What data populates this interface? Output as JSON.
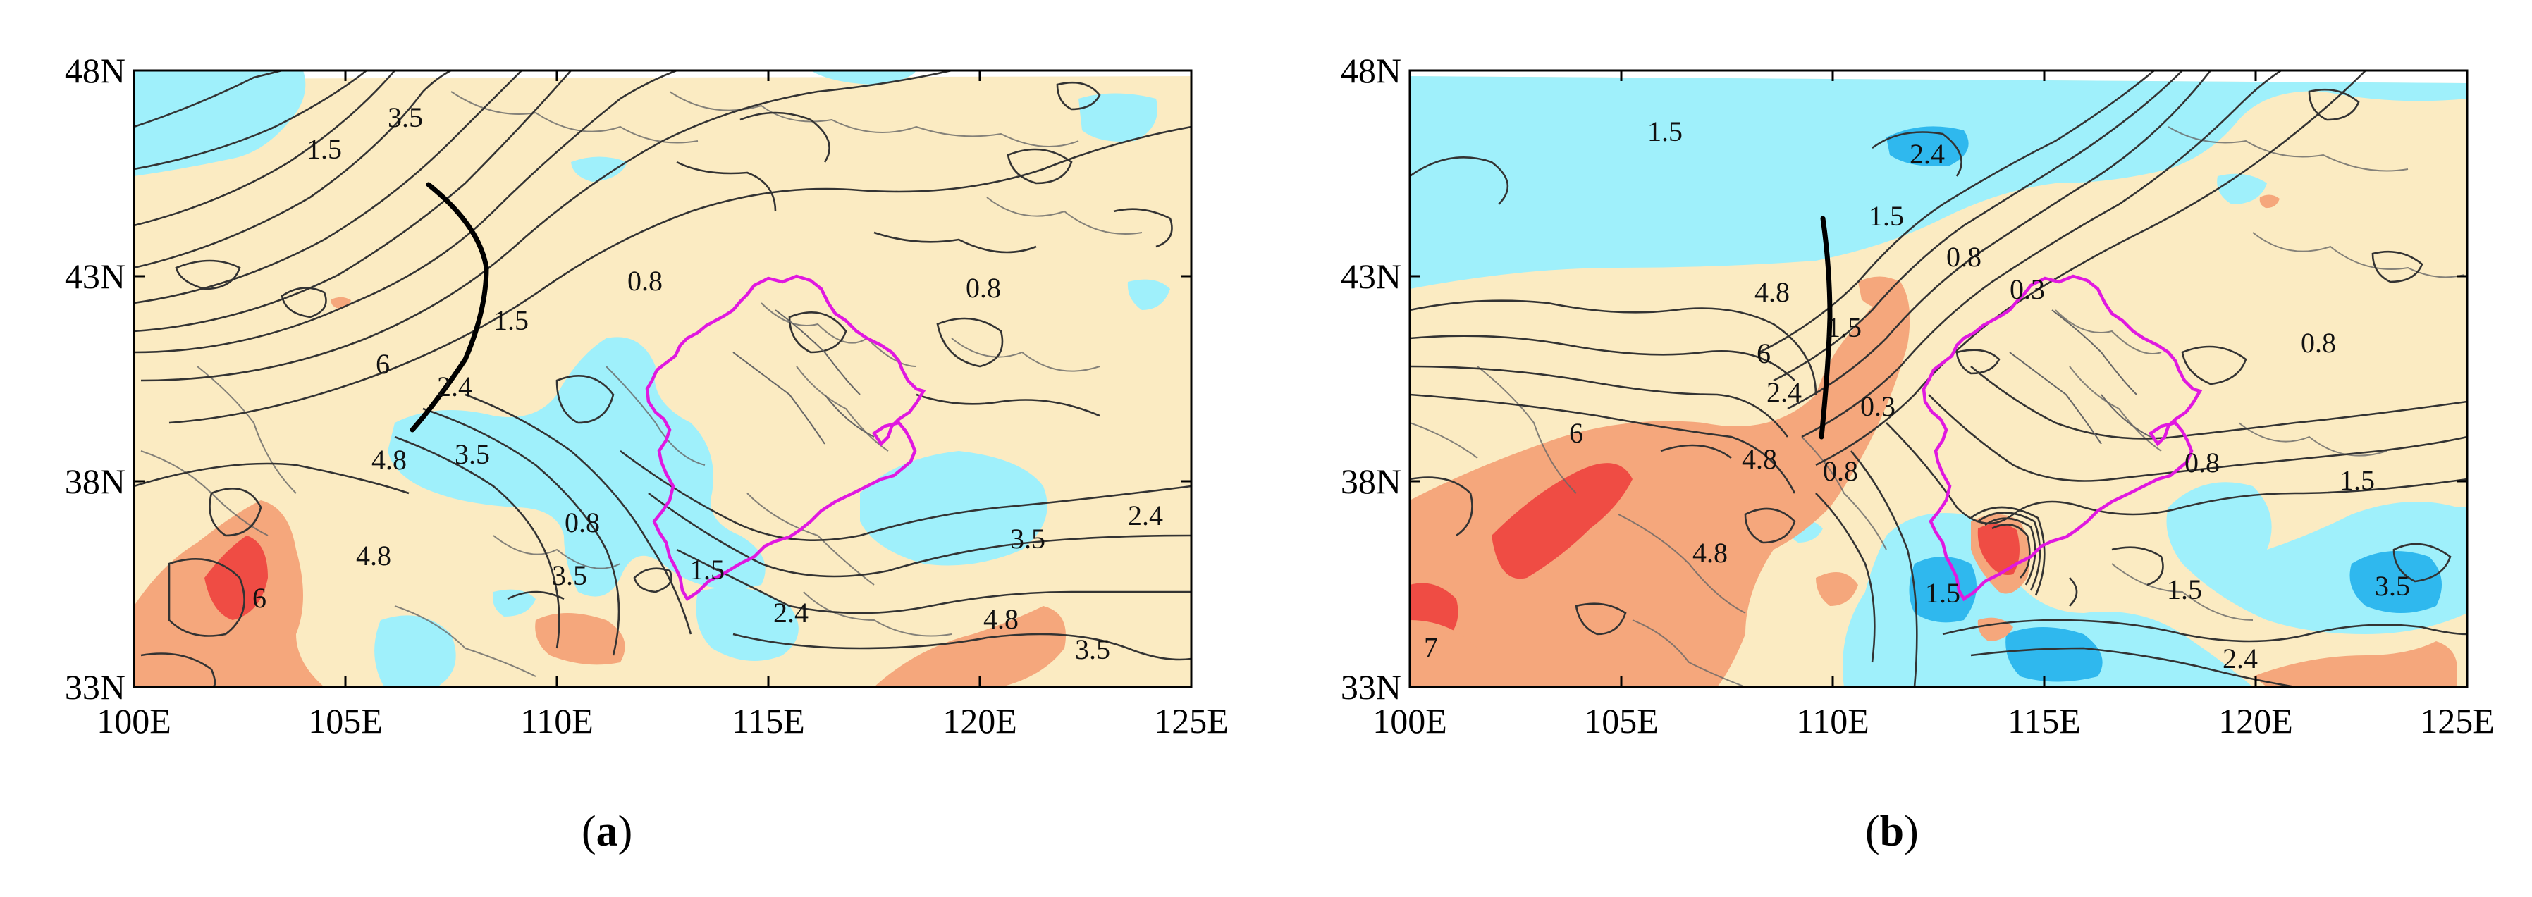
{
  "colors": {
    "ocean_cyan": "#9ff0fb",
    "deep_blue": "#2fb8ee",
    "land_tan": "#fbebc2",
    "warm_orange": "#f5a77c",
    "hot_red": "#ef4c44",
    "contour_gray": "#333333",
    "region_outline": "#e018e0",
    "trough_line": "#000000"
  },
  "panels": [
    {
      "caption": "(a)",
      "caption_letter": "a",
      "lat_labels": [
        "48N",
        "43N",
        "38N",
        "33N"
      ],
      "lon_labels": [
        "100E",
        "105E",
        "110E",
        "115E",
        "120E",
        "125E"
      ],
      "contour_labels": [
        "3.5",
        "1.5",
        "0.8",
        "1.5",
        "6",
        "2.4",
        "4.8",
        "3.5",
        "4.8",
        "6",
        "0.8",
        "1.5",
        "3.5",
        "2.4",
        "3.5",
        "2.4",
        "4.8",
        "3.5",
        "0.8"
      ]
    },
    {
      "caption": "(b)",
      "caption_letter": "b",
      "lat_labels": [
        "48N",
        "43N",
        "38N",
        "33N"
      ],
      "lon_labels": [
        "100E",
        "105E",
        "110E",
        "115E",
        "120E",
        "125E"
      ],
      "contour_labels": [
        "1.5",
        "2.4",
        "1.5",
        "0.8",
        "4.8",
        "6",
        "2.4",
        "1.5",
        "0.3",
        "0.8",
        "0.3",
        "6",
        "4.8",
        "0.8",
        "4.8",
        "0.8",
        "1.5",
        "1.5",
        "1.5",
        "3.5",
        "2.4",
        "7"
      ]
    }
  ]
}
